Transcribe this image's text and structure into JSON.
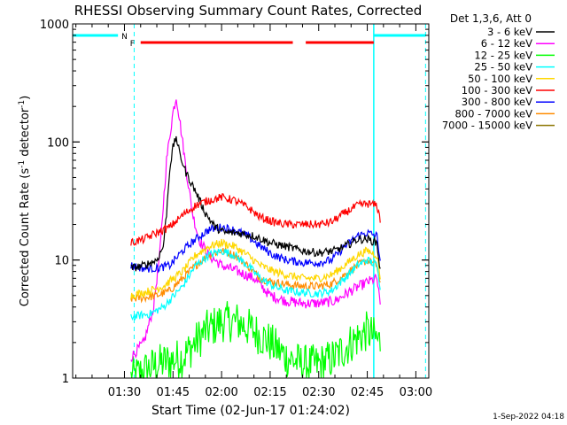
{
  "title": "RHESSI Observing Summary Count Rates, Corrected",
  "footer_date": "1-Sep-2022 04:18",
  "chart_data": {
    "type": "line",
    "title": "RHESSI Observing Summary Count Rates, Corrected",
    "xlabel": "Start Time (02-Jun-17 01:24:02)",
    "ylabel_main": "Corrected Count Rate (s",
    "ylabel_sup1": "-1",
    "ylabel_mid": " detector",
    "ylabel_sup2": "-1",
    "ylabel_end": ")",
    "y_scale": "log",
    "ylim": [
      1,
      1000
    ],
    "xlim_minutes": [
      74,
      184
    ],
    "x_ticks": [
      {
        "m": 90,
        "label": "01:30"
      },
      {
        "m": 105,
        "label": "01:45"
      },
      {
        "m": 120,
        "label": "02:00"
      },
      {
        "m": 135,
        "label": "02:15"
      },
      {
        "m": 150,
        "label": "02:30"
      },
      {
        "m": 165,
        "label": "02:45"
      },
      {
        "m": 180,
        "label": "03:00"
      }
    ],
    "y_ticks": [
      {
        "v": 1,
        "label": "1"
      },
      {
        "v": 10,
        "label": "10"
      },
      {
        "v": 100,
        "label": "100"
      },
      {
        "v": 1000,
        "label": "1000"
      }
    ],
    "legend_header": "Det 1,3,6, Att 0",
    "legend_position": "right",
    "series": [
      {
        "name": "3 - 6 keV",
        "color": "#000000",
        "points": [
          [
            92,
            8.5
          ],
          [
            96,
            9
          ],
          [
            100,
            10
          ],
          [
            102,
            13
          ],
          [
            103,
            25
          ],
          [
            104,
            60
          ],
          [
            105,
            90
          ],
          [
            106,
            110
          ],
          [
            107,
            80
          ],
          [
            109,
            55
          ],
          [
            112,
            38
          ],
          [
            115,
            25
          ],
          [
            118,
            19
          ],
          [
            121,
            17
          ],
          [
            125,
            17
          ],
          [
            130,
            16
          ],
          [
            135,
            14
          ],
          [
            140,
            13
          ],
          [
            145,
            12
          ],
          [
            150,
            11.5
          ],
          [
            155,
            12
          ],
          [
            158,
            13
          ],
          [
            162,
            15
          ],
          [
            165,
            15
          ],
          [
            168,
            14
          ],
          [
            169,
            8
          ]
        ]
      },
      {
        "name": "6 - 12 keV",
        "color": "#ff00ff",
        "points": [
          [
            92,
            1.5
          ],
          [
            96,
            2
          ],
          [
            99,
            4
          ],
          [
            101,
            12
          ],
          [
            103,
            70
          ],
          [
            105,
            180
          ],
          [
            106,
            240
          ],
          [
            107,
            160
          ],
          [
            109,
            60
          ],
          [
            111,
            25
          ],
          [
            113,
            15
          ],
          [
            116,
            11
          ],
          [
            120,
            9
          ],
          [
            125,
            8
          ],
          [
            130,
            7
          ],
          [
            135,
            5
          ],
          [
            140,
            4.5
          ],
          [
            145,
            4.3
          ],
          [
            150,
            4.3
          ],
          [
            155,
            4.5
          ],
          [
            160,
            5.5
          ],
          [
            165,
            6.5
          ],
          [
            168,
            7
          ],
          [
            169,
            4
          ]
        ]
      },
      {
        "name": "12 - 25 keV",
        "color": "#00ff00",
        "points": [
          [
            92,
            1
          ],
          [
            100,
            1.3
          ],
          [
            108,
            1.5
          ],
          [
            115,
            2.5
          ],
          [
            120,
            3
          ],
          [
            125,
            3
          ],
          [
            130,
            2.5
          ],
          [
            135,
            2
          ],
          [
            140,
            1.5
          ],
          [
            145,
            1.3
          ],
          [
            150,
            1.3
          ],
          [
            155,
            1.5
          ],
          [
            160,
            2
          ],
          [
            165,
            2.5
          ],
          [
            169,
            2
          ]
        ]
      },
      {
        "name": "25 - 50 keV",
        "color": "#00ffff",
        "points": [
          [
            92,
            3.3
          ],
          [
            98,
            3.5
          ],
          [
            102,
            4
          ],
          [
            108,
            6
          ],
          [
            112,
            9
          ],
          [
            116,
            11
          ],
          [
            120,
            12
          ],
          [
            124,
            11
          ],
          [
            128,
            9
          ],
          [
            132,
            7
          ],
          [
            136,
            6
          ],
          [
            140,
            5.5
          ],
          [
            145,
            5.3
          ],
          [
            150,
            5.2
          ],
          [
            154,
            5.5
          ],
          [
            158,
            7
          ],
          [
            162,
            9
          ],
          [
            165,
            10
          ],
          [
            168,
            9
          ],
          [
            169,
            6
          ]
        ]
      },
      {
        "name": "50 - 100 keV",
        "color": "#ffd700",
        "points": [
          [
            92,
            5
          ],
          [
            98,
            5.5
          ],
          [
            102,
            6
          ],
          [
            108,
            8
          ],
          [
            112,
            11
          ],
          [
            116,
            13
          ],
          [
            120,
            14
          ],
          [
            124,
            13
          ],
          [
            128,
            11
          ],
          [
            132,
            9
          ],
          [
            136,
            8
          ],
          [
            140,
            7.5
          ],
          [
            145,
            7
          ],
          [
            150,
            7
          ],
          [
            154,
            7.5
          ],
          [
            158,
            9
          ],
          [
            162,
            11
          ],
          [
            165,
            12
          ],
          [
            168,
            11
          ],
          [
            169,
            7
          ]
        ]
      },
      {
        "name": "100 - 300 keV",
        "color": "#ff0000",
        "points": [
          [
            92,
            14
          ],
          [
            96,
            15
          ],
          [
            100,
            17
          ],
          [
            104,
            19
          ],
          [
            108,
            24
          ],
          [
            112,
            29
          ],
          [
            116,
            32
          ],
          [
            120,
            34
          ],
          [
            124,
            32
          ],
          [
            128,
            28
          ],
          [
            132,
            23
          ],
          [
            136,
            21
          ],
          [
            140,
            20
          ],
          [
            145,
            20
          ],
          [
            150,
            20
          ],
          [
            154,
            21
          ],
          [
            158,
            25
          ],
          [
            162,
            29
          ],
          [
            165,
            30
          ],
          [
            168,
            29
          ],
          [
            169,
            22
          ]
        ]
      },
      {
        "name": "300 - 800 keV",
        "color": "#0000ff",
        "points": [
          [
            92,
            9
          ],
          [
            96,
            8.5
          ],
          [
            100,
            8.5
          ],
          [
            104,
            9
          ],
          [
            108,
            12
          ],
          [
            112,
            15
          ],
          [
            116,
            18
          ],
          [
            120,
            19
          ],
          [
            124,
            18
          ],
          [
            128,
            16
          ],
          [
            132,
            13
          ],
          [
            136,
            11
          ],
          [
            140,
            10
          ],
          [
            145,
            9.5
          ],
          [
            150,
            9.5
          ],
          [
            154,
            10
          ],
          [
            158,
            13
          ],
          [
            162,
            16
          ],
          [
            165,
            17
          ],
          [
            168,
            16
          ],
          [
            169,
            10
          ]
        ]
      },
      {
        "name": "800 - 7000 keV",
        "color": "#ff8c00",
        "points": [
          [
            92,
            4.7
          ],
          [
            96,
            4.8
          ],
          [
            100,
            5
          ],
          [
            104,
            5.5
          ],
          [
            108,
            7
          ],
          [
            112,
            9
          ],
          [
            116,
            11
          ],
          [
            120,
            12
          ],
          [
            124,
            11
          ],
          [
            128,
            9
          ],
          [
            132,
            7
          ],
          [
            136,
            6.5
          ],
          [
            140,
            6.2
          ],
          [
            145,
            6
          ],
          [
            150,
            6
          ],
          [
            154,
            6.3
          ],
          [
            158,
            7.5
          ],
          [
            162,
            9
          ],
          [
            165,
            10
          ],
          [
            168,
            9
          ],
          [
            169,
            6
          ]
        ]
      },
      {
        "name": "7000 - 15000 keV",
        "color": "#8b7500",
        "points": []
      }
    ],
    "annotations": {
      "flags": [
        {
          "label": "N",
          "color": "#00ffff",
          "segments": [
            [
              74,
              88
            ],
            [
              167,
              183
            ]
          ]
        },
        {
          "label": "F",
          "color": "#ff0000",
          "segments": [
            [
              95,
              142
            ],
            [
              146,
              167
            ]
          ]
        }
      ],
      "vlines_solid": [
        167
      ],
      "vlines_dashed": [
        93,
        183
      ]
    }
  }
}
